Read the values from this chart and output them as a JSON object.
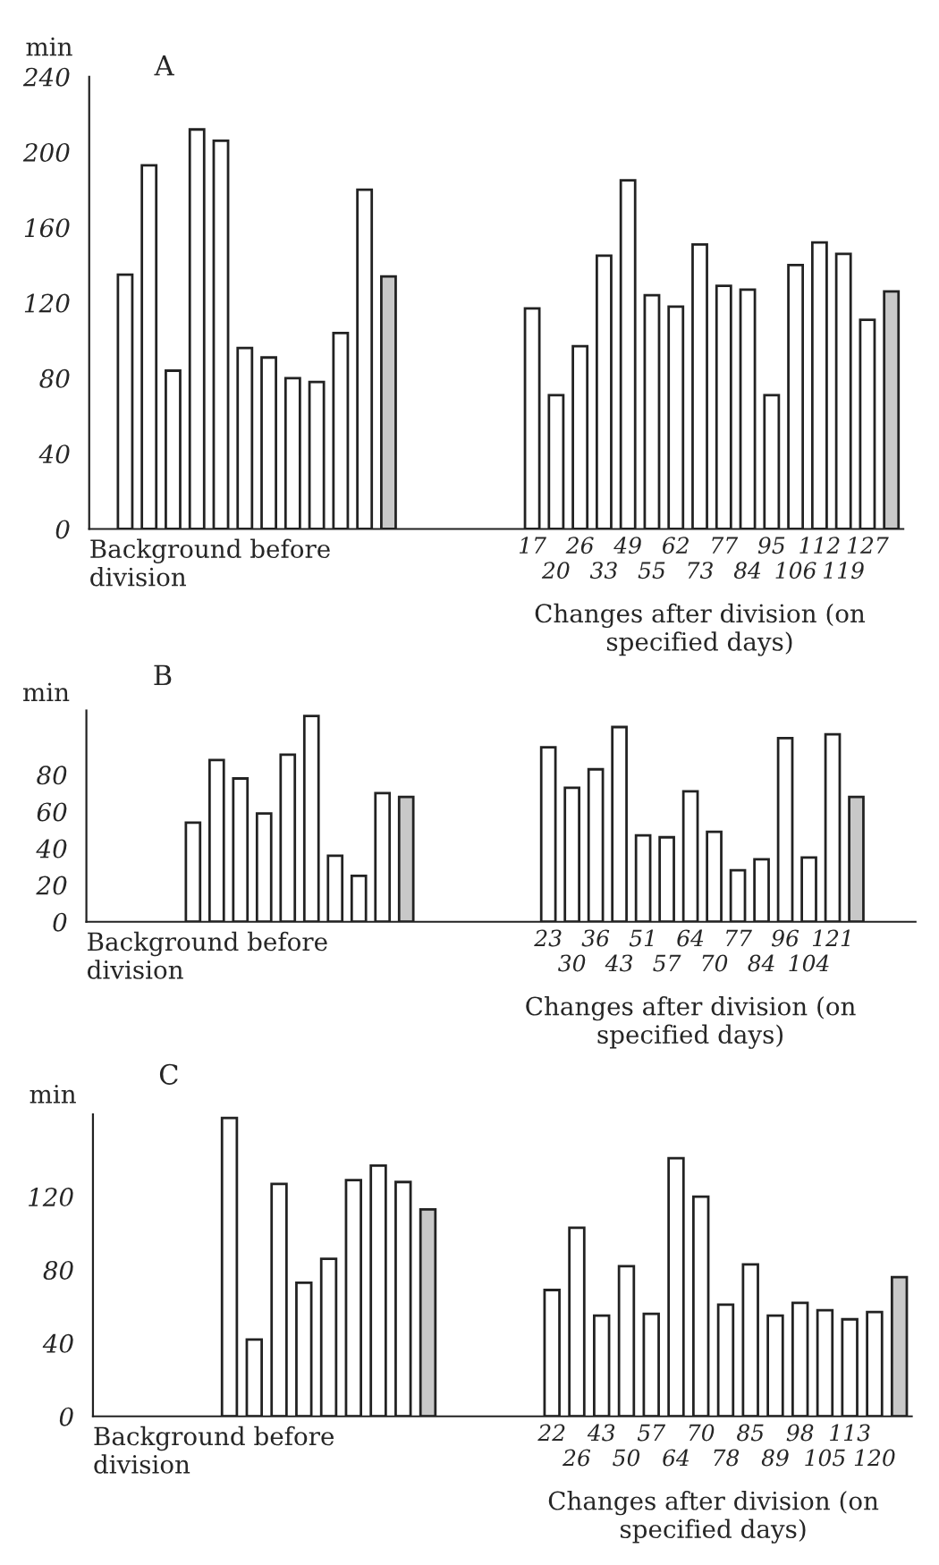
{
  "chart_data": [
    {
      "type": "bar",
      "title": "A",
      "ylabel": "min",
      "ylim": [
        0,
        240
      ],
      "yticks": [
        0,
        40,
        80,
        120,
        160,
        200,
        240
      ],
      "grid": false,
      "legend": false,
      "categories": [
        null,
        null,
        null,
        null,
        null,
        null,
        null,
        null,
        null,
        null,
        null,
        null,
        null,
        null,
        null,
        null,
        null,
        null,
        "17",
        "20",
        "26",
        "33",
        "49",
        "55",
        "62",
        "73",
        "77",
        "84",
        "95",
        "106",
        "112",
        "119",
        "127",
        null
      ],
      "values": [
        null,
        135,
        193,
        84,
        212,
        206,
        96,
        91,
        80,
        78,
        104,
        180,
        134,
        null,
        null,
        null,
        null,
        null,
        117,
        71,
        97,
        145,
        185,
        124,
        118,
        151,
        129,
        127,
        71,
        140,
        152,
        146,
        111,
        126
      ],
      "colors": [
        "#ffffff",
        "#ffffff",
        "#ffffff",
        "#ffffff",
        "#ffffff",
        "#ffffff",
        "#ffffff",
        "#ffffff",
        "#ffffff",
        "#ffffff",
        "#ffffff",
        "#ffffff",
        "#c8c8c8",
        "#ffffff",
        "#ffffff",
        "#ffffff",
        "#ffffff",
        "#ffffff",
        "#ffffff",
        "#ffffff",
        "#ffffff",
        "#ffffff",
        "#ffffff",
        "#ffffff",
        "#ffffff",
        "#ffffff",
        "#ffffff",
        "#ffffff",
        "#ffffff",
        "#ffffff",
        "#ffffff",
        "#ffffff",
        "#ffffff",
        "#c8c8c8"
      ],
      "annotations": [
        "Background before\ndivision",
        "Changes after division (on\nspecified days)"
      ]
    },
    {
      "type": "bar",
      "title": "B",
      "ylabel": "min",
      "ylim": [
        0,
        115
      ],
      "yticks": [
        0,
        20,
        40,
        60,
        80
      ],
      "grid": false,
      "legend": false,
      "categories": [
        null,
        null,
        null,
        null,
        null,
        null,
        null,
        null,
        null,
        null,
        null,
        null,
        null,
        null,
        null,
        null,
        null,
        null,
        null,
        "23",
        "30",
        "36",
        "43",
        "51",
        "57",
        "64",
        "70",
        "77",
        "84",
        "96",
        "104",
        "121",
        null,
        null,
        null
      ],
      "values": [
        null,
        null,
        null,
        null,
        54,
        88,
        78,
        59,
        91,
        112,
        36,
        25,
        70,
        68,
        null,
        null,
        null,
        null,
        null,
        95,
        73,
        83,
        106,
        47,
        46,
        71,
        49,
        28,
        34,
        100,
        35,
        102,
        68,
        null,
        null
      ],
      "colors": [
        "#ffffff",
        "#ffffff",
        "#ffffff",
        "#ffffff",
        "#ffffff",
        "#ffffff",
        "#ffffff",
        "#ffffff",
        "#ffffff",
        "#ffffff",
        "#ffffff",
        "#ffffff",
        "#ffffff",
        "#c8c8c8",
        "#ffffff",
        "#ffffff",
        "#ffffff",
        "#ffffff",
        "#ffffff",
        "#ffffff",
        "#ffffff",
        "#ffffff",
        "#ffffff",
        "#ffffff",
        "#ffffff",
        "#ffffff",
        "#ffffff",
        "#ffffff",
        "#ffffff",
        "#ffffff",
        "#ffffff",
        "#ffffff",
        "#c8c8c8",
        "#ffffff",
        "#ffffff"
      ],
      "annotations": [
        "Background before\ndivision",
        "Changes after division (on\nspecified days)"
      ]
    },
    {
      "type": "bar",
      "title": "C",
      "ylabel": "min",
      "ylim": [
        0,
        165
      ],
      "yticks": [
        0,
        40,
        80,
        120
      ],
      "grid": false,
      "legend": false,
      "categories": [
        null,
        null,
        null,
        null,
        null,
        null,
        null,
        null,
        null,
        null,
        null,
        null,
        null,
        null,
        null,
        null,
        null,
        null,
        "22",
        "26",
        "43",
        "50",
        "57",
        "64",
        "70",
        "78",
        "85",
        "89",
        "98",
        "105",
        "113",
        "120",
        null
      ],
      "values": [
        null,
        null,
        null,
        null,
        null,
        163,
        42,
        127,
        73,
        86,
        129,
        137,
        128,
        113,
        null,
        null,
        null,
        null,
        69,
        103,
        55,
        82,
        56,
        141,
        120,
        61,
        83,
        55,
        62,
        58,
        53,
        57,
        76
      ],
      "colors": [
        "#ffffff",
        "#ffffff",
        "#ffffff",
        "#ffffff",
        "#ffffff",
        "#ffffff",
        "#ffffff",
        "#ffffff",
        "#ffffff",
        "#ffffff",
        "#ffffff",
        "#ffffff",
        "#ffffff",
        "#c8c8c8",
        "#ffffff",
        "#ffffff",
        "#ffffff",
        "#ffffff",
        "#ffffff",
        "#ffffff",
        "#ffffff",
        "#ffffff",
        "#ffffff",
        "#ffffff",
        "#ffffff",
        "#ffffff",
        "#ffffff",
        "#ffffff",
        "#ffffff",
        "#ffffff",
        "#ffffff",
        "#ffffff",
        "#c8c8c8"
      ],
      "annotations": [
        "Background before\ndivision",
        "Changes after division (on\nspecified days)"
      ]
    }
  ]
}
